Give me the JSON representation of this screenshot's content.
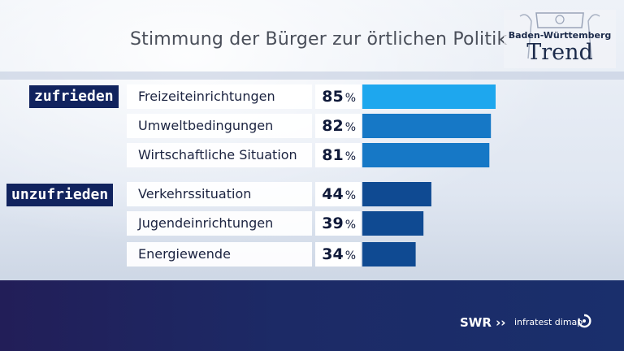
{
  "header": {
    "title": "Stimmung der Bürger zur örtlichen Politik",
    "logo_line1": "Baden-Württemberg",
    "logo_line2": "Trend"
  },
  "groups": [
    {
      "label": "zufrieden"
    },
    {
      "label": "unzufrieden"
    }
  ],
  "chart_data": {
    "type": "bar",
    "orientation": "horizontal",
    "categories": [
      "Freizeiteinrichtungen",
      "Umweltbedingungen",
      "Wirtschaftliche Situation",
      "Verkehrssituation",
      "Jugendeinrichtungen",
      "Energiewende"
    ],
    "values": [
      85,
      82,
      81,
      44,
      39,
      34
    ],
    "value_labels": [
      "85",
      "82",
      "81",
      "44",
      "39",
      "34"
    ],
    "unit": "%",
    "groups": [
      "zufrieden",
      "zufrieden",
      "zufrieden",
      "unzufrieden",
      "unzufrieden",
      "unzufrieden"
    ],
    "colors": [
      "#1ea7ee",
      "#1678c6",
      "#1678c6",
      "#0f4a92",
      "#0f4a92",
      "#0f4a92"
    ],
    "xlim": [
      0,
      85
    ]
  },
  "footer": {
    "broadcaster": "SWR",
    "institute": "infratest dimap"
  }
}
